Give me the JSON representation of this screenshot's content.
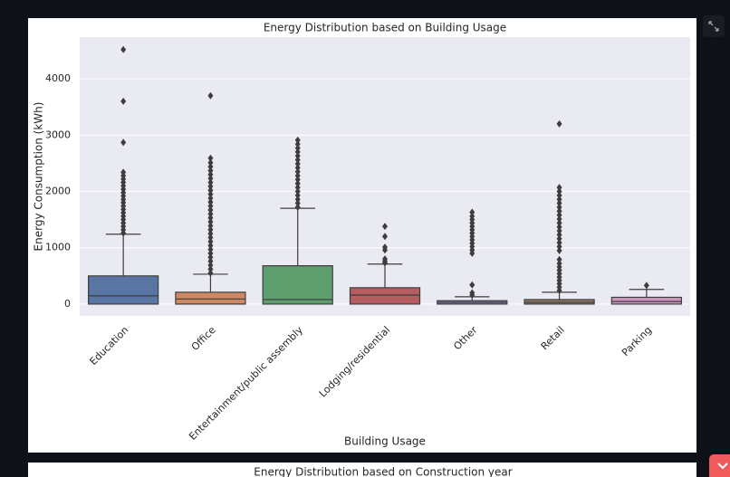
{
  "chart_data": {
    "type": "box",
    "title": "Energy Distribution based on Building Usage",
    "x_label": "Building Usage",
    "y_label": "Energy Consumption (kWh)",
    "categories": [
      "Education",
      "Office",
      "Entertainment/public assembly",
      "Lodging/residential",
      "Other",
      "Retail",
      "Parking"
    ],
    "ylim": [
      -210,
      4740
    ],
    "yticks": [
      0,
      1000,
      2000,
      3000,
      4000
    ],
    "grid": true,
    "outlier_color": "#3d3d3d",
    "boxes": [
      {
        "color": "#5975a4",
        "min": 0,
        "q1": 0,
        "median": 145,
        "q3": 500,
        "max": 1240,
        "outliers": [
          1260,
          1320,
          1380,
          1440,
          1500,
          1560,
          1620,
          1680,
          1740,
          1800,
          1860,
          1920,
          1980,
          2040,
          2100,
          2160,
          2220,
          2280,
          2340,
          2870,
          3600,
          4520
        ]
      },
      {
        "color": "#cc8963",
        "min": 0,
        "q1": 0,
        "median": 90,
        "q3": 210,
        "max": 530,
        "outliers": [
          550,
          620,
          690,
          760,
          830,
          900,
          970,
          1040,
          1110,
          1180,
          1250,
          1320,
          1390,
          1460,
          1530,
          1600,
          1670,
          1740,
          1810,
          1880,
          1950,
          2020,
          2090,
          2160,
          2230,
          2300,
          2370,
          2440,
          2510,
          2590,
          3700
        ]
      },
      {
        "color": "#5f9e6e",
        "min": 0,
        "q1": 0,
        "median": 80,
        "q3": 680,
        "max": 1700,
        "outliers": [
          1720,
          1790,
          1860,
          1930,
          2000,
          2070,
          2140,
          2210,
          2280,
          2350,
          2420,
          2490,
          2560,
          2630,
          2700,
          2770,
          2840,
          2910
        ]
      },
      {
        "color": "#b55d60",
        "min": 0,
        "q1": 0,
        "median": 160,
        "q3": 290,
        "max": 710,
        "outliers": [
          730,
          760,
          800,
          960,
          1010,
          1200,
          1380
        ]
      },
      {
        "color": "#857aab",
        "min": 0,
        "q1": 0,
        "median": 30,
        "q3": 60,
        "max": 130,
        "outliers": [
          160,
          200,
          340,
          900,
          960,
          1020,
          1080,
          1140,
          1200,
          1260,
          1320,
          1380,
          1440,
          1500,
          1560,
          1630
        ]
      },
      {
        "color": "#8d7866",
        "min": 0,
        "q1": 0,
        "median": 30,
        "q3": 80,
        "max": 210,
        "outliers": [
          240,
          300,
          360,
          420,
          480,
          540,
          600,
          660,
          720,
          790,
          950,
          1020,
          1090,
          1160,
          1230,
          1300,
          1370,
          1440,
          1510,
          1580,
          1650,
          1720,
          1790,
          1860,
          1930,
          2000,
          2070,
          3200
        ]
      },
      {
        "color": "#d095bf",
        "min": 0,
        "q1": 0,
        "median": 45,
        "q3": 120,
        "max": 260,
        "outliers": [
          330
        ]
      }
    ]
  },
  "next_chart_title": "Energy Distribution based on Construction year"
}
